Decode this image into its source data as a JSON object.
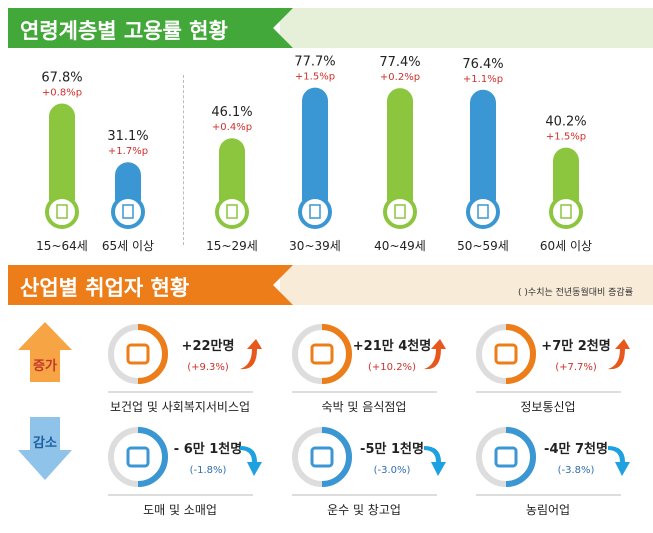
{
  "section1": {
    "title": "연령계층별 고용률 현황"
  },
  "section2": {
    "title": "산업별 취업자 현황",
    "note": "( )수치는 전년동월대비 증감률",
    "increase_label": "증가",
    "decrease_label": "감소"
  },
  "chart_data": {
    "type": "bar",
    "categories": [
      "15~64세",
      "65세 이상",
      "15~29세",
      "30~39세",
      "40~49세",
      "50~59세",
      "60세 이상"
    ],
    "values": [
      67.8,
      31.1,
      46.1,
      77.7,
      77.4,
      76.4,
      40.2
    ],
    "value_labels": [
      "67.8%",
      "31.1%",
      "46.1%",
      "77.7%",
      "77.4%",
      "76.4%",
      "40.2%"
    ],
    "change_labels": [
      "+0.8%p",
      "+1.7%p",
      "+0.4%p",
      "+1.5%p",
      "+0.2%p",
      "+1.1%p",
      "+1.5%p"
    ],
    "bar_colors": [
      "#8cc63f",
      "#3b97d3",
      "#8cc63f",
      "#3b97d3",
      "#8cc63f",
      "#3b97d3",
      "#8cc63f"
    ],
    "ylabel": "",
    "xlabel": ""
  },
  "industries": {
    "increase": [
      {
        "name": "보건업 및 사회복지서비스업",
        "count": "+22만명",
        "rate": "(+9.3%)",
        "icon": "medical-kit-icon"
      },
      {
        "name": "숙박 및 음식점업",
        "count": "+21만 4천명",
        "rate": "(+10.2%)",
        "icon": "plate-utensils-icon"
      },
      {
        "name": "정보통신업",
        "count": "+7만 2천명",
        "rate": "(+7.7%)",
        "icon": "phone-icon"
      }
    ],
    "decrease": [
      {
        "name": "도매 및 소매업",
        "count": "- 6만 1천명",
        "rate": "(-1.8%)",
        "icon": "basket-icon"
      },
      {
        "name": "운수 및 창고업",
        "count": "-5만 1천명",
        "rate": "(-3.0%)",
        "icon": "truck-icon"
      },
      {
        "name": "농림어업",
        "count": "-4만 7천명",
        "rate": "(-3.8%)",
        "icon": "wheat-icon"
      }
    ]
  },
  "colors": {
    "green": "#43a83a",
    "orange": "#ec7d18",
    "blue": "#3b97d3",
    "red": "#d0312d"
  }
}
